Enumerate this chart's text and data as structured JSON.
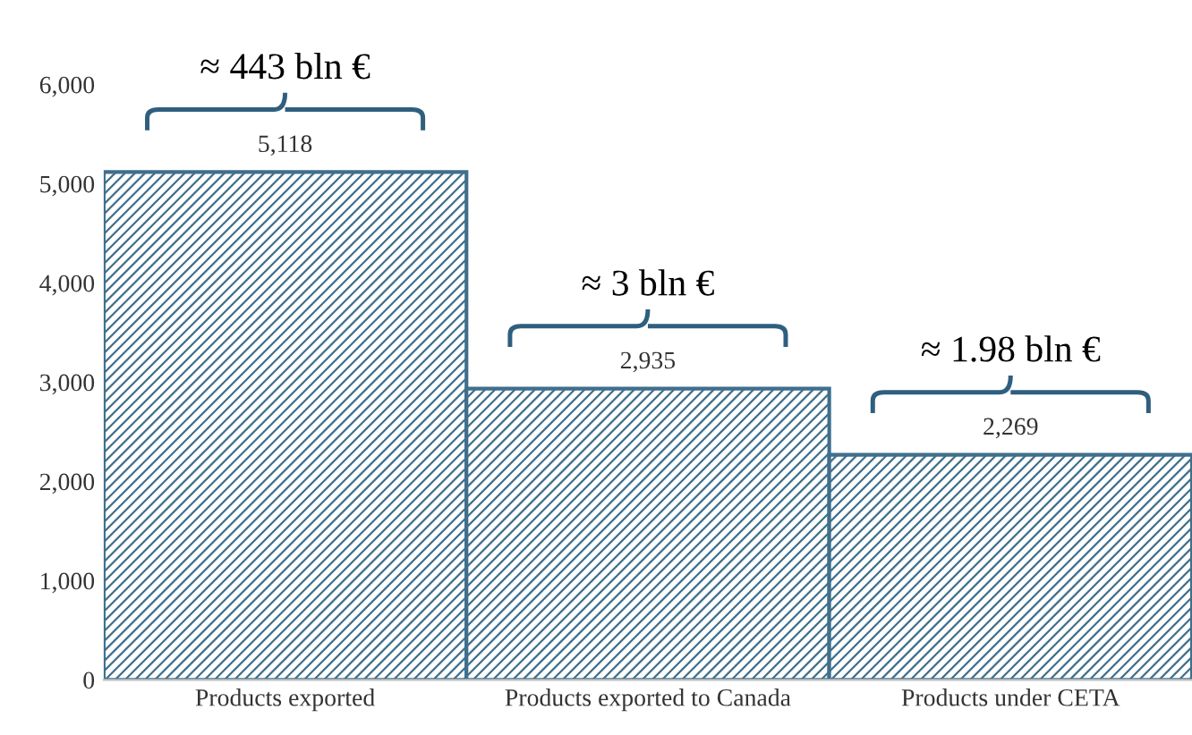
{
  "chart_data": {
    "type": "bar",
    "categories": [
      "Products exported",
      "Products exported to Canada",
      "Products under CETA"
    ],
    "values": [
      5118,
      2935,
      2269
    ],
    "color": "#3f6f8c",
    "ylim": [
      0,
      6000
    ],
    "yticks": [
      {
        "value": 0,
        "label": "0"
      },
      {
        "value": 1000,
        "label": "1,000"
      },
      {
        "value": 2000,
        "label": "2,000"
      },
      {
        "value": 3000,
        "label": "3,000"
      },
      {
        "value": 4000,
        "label": "4,000"
      },
      {
        "value": 5000,
        "label": "5,000"
      },
      {
        "value": 6000,
        "label": "6,000"
      }
    ],
    "value_labels": [
      "5,118",
      "2,935",
      "2,269"
    ],
    "grid": false,
    "annotations": [
      "≈ 443 bln €",
      "≈ 3 bln €",
      "≈ 1.98 bln €"
    ]
  }
}
